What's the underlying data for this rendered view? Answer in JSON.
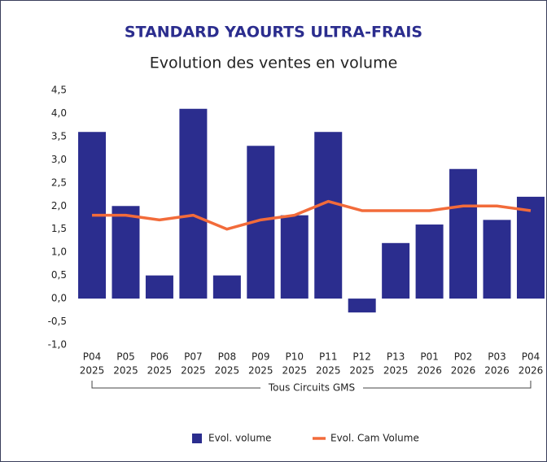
{
  "chart_data": {
    "type": "bar_line",
    "title": "STANDARD YAOURTS ULTRA-FRAIS",
    "subtitle": "Evolution des ventes en volume",
    "categories": [
      [
        "P04",
        "2025"
      ],
      [
        "P05",
        "2025"
      ],
      [
        "P06",
        "2025"
      ],
      [
        "P07",
        "2025"
      ],
      [
        "P08",
        "2025"
      ],
      [
        "P09",
        "2025"
      ],
      [
        "P10",
        "2025"
      ],
      [
        "P11",
        "2025"
      ],
      [
        "P12",
        "2025"
      ],
      [
        "P13",
        "2025"
      ],
      [
        "P01",
        "2026"
      ],
      [
        "P02",
        "2026"
      ],
      [
        "P03",
        "2026"
      ],
      [
        "P04",
        "2026"
      ]
    ],
    "group_label": "Tous Circuits GMS",
    "series": [
      {
        "name": "Evol. volume",
        "type": "bar",
        "color": "#2b2d8e",
        "values": [
          3.6,
          2.0,
          0.5,
          4.1,
          0.5,
          3.3,
          1.8,
          3.6,
          -0.3,
          1.2,
          1.6,
          2.8,
          1.7,
          2.2
        ]
      },
      {
        "name": "Evol. Cam Volume",
        "type": "line",
        "color": "#f26b3a",
        "values": [
          1.8,
          1.8,
          1.7,
          1.8,
          1.5,
          1.7,
          1.8,
          2.1,
          1.9,
          1.9,
          1.9,
          2.0,
          2.0,
          1.9
        ]
      }
    ],
    "ylim": [
      -1.0,
      4.5
    ],
    "yticks": [
      {
        "value": -1.0,
        "label": "-1,0"
      },
      {
        "value": -0.5,
        "label": "-0,5"
      },
      {
        "value": 0,
        "label": "0,0"
      },
      {
        "value": 0.5,
        "label": "0,5"
      },
      {
        "value": 1.0,
        "label": "1,0"
      },
      {
        "value": 1.5,
        "label": "1,5"
      },
      {
        "value": 2.0,
        "label": "2,0"
      },
      {
        "value": 2.5,
        "label": "2,5"
      },
      {
        "value": 3.0,
        "label": "3,0"
      },
      {
        "value": 3.5,
        "label": "3,5"
      },
      {
        "value": 4.0,
        "label": "4,0"
      },
      {
        "value": 4.5,
        "label": "4,5"
      }
    ],
    "grid": false,
    "legend": "bottom"
  }
}
